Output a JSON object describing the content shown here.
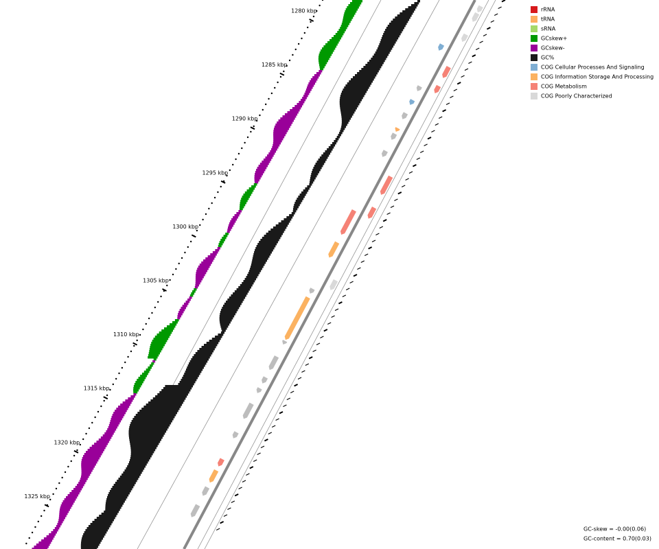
{
  "ticks": [
    "1280 kbp",
    "1285 kbp",
    "1290 kbp",
    "1295 kbp",
    "1300 kbp",
    "1305 kbp",
    "1310 kbp",
    "1315 kbp",
    "1320 kbp",
    "1325 kbp"
  ],
  "legend": [
    {
      "label": "rRNA",
      "color": "#d7191c"
    },
    {
      "label": "tRNA",
      "color": "#fdae61"
    },
    {
      "label": "sRNA",
      "color": "#a6d96a"
    },
    {
      "label": "GCskew+",
      "color": "#009900"
    },
    {
      "label": "GCskew-",
      "color": "#990099"
    },
    {
      "label": "GC%",
      "color": "#1a1a1a"
    },
    {
      "label": "COG Cellular Processes And Signaling",
      "color": "#7faed3"
    },
    {
      "label": "COG Information Storage And Processing",
      "color": "#fbb261"
    },
    {
      "label": "COG Metabolism",
      "color": "#f58276"
    },
    {
      "label": "COG Poorly Characterized",
      "color": "#d9d9d9"
    }
  ],
  "stats": [
    "GC-skew = -0.00(0.06)",
    "GC-content = 0.70(0.03)"
  ]
}
